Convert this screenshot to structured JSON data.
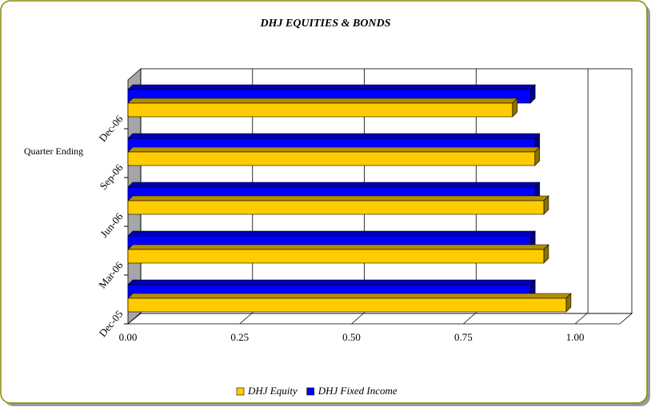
{
  "chart_data": {
    "type": "bar3d_horizontal",
    "title": "DHJ EQUITIES & BONDS",
    "y_label": "Quarter Ending",
    "categories": [
      "Dec-05",
      "Mar-06",
      "Jun-06",
      "Sep-06",
      "Dec-06"
    ],
    "series": [
      {
        "name": "DHJ Equity",
        "color": "#ffcc00",
        "values": [
          0.98,
          0.93,
          0.93,
          0.91,
          0.86
        ]
      },
      {
        "name": "DHJ Fixed Income",
        "color": "#0000ff",
        "values": [
          0.9,
          0.9,
          0.91,
          0.91,
          0.9
        ]
      }
    ],
    "xlim": [
      0,
      1.1
    ],
    "xticks": [
      {
        "value": 0,
        "label": "0.00"
      },
      {
        "value": 0.25,
        "label": "0.25"
      },
      {
        "value": 0.5,
        "label": "0.50"
      },
      {
        "value": 0.75,
        "label": "0.75"
      },
      {
        "value": 1,
        "label": "1.00"
      }
    ],
    "grid": true,
    "legend": "bottom"
  }
}
